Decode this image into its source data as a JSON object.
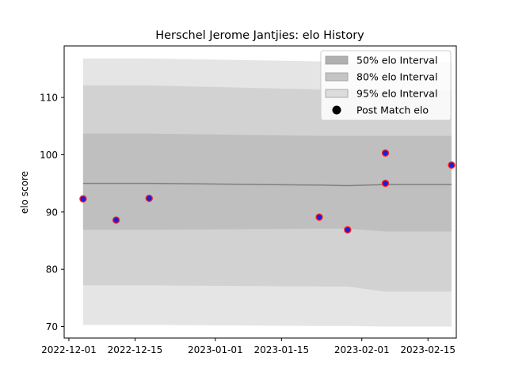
{
  "chart_data": {
    "type": "line",
    "title": "Herschel Jerome Jantjies: elo History",
    "xlabel": "",
    "ylabel": "elo score",
    "xlim": [
      "2022-11-30",
      "2023-02-21"
    ],
    "ylim": [
      68,
      119
    ],
    "x_ticks": [
      "2022-12-01",
      "2022-12-15",
      "2023-01-01",
      "2023-01-15",
      "2023-02-01",
      "2023-02-15"
    ],
    "y_ticks": [
      70,
      80,
      90,
      100,
      110
    ],
    "grid": false,
    "legend_placement": "top-right",
    "band_x": [
      "2022-12-04",
      "2022-12-11",
      "2022-12-18",
      "2023-01-23",
      "2023-01-29",
      "2023-02-06",
      "2023-02-20"
    ],
    "mean_elo": [
      95.0,
      95.0,
      95.0,
      94.7,
      94.6,
      94.8,
      94.8
    ],
    "bands": [
      {
        "name": "95% elo Interval",
        "color": "#e5e5e5",
        "upper": [
          116.8,
          116.8,
          116.8,
          116.3,
          116.2,
          116.2,
          116.2
        ],
        "lower": [
          70.3,
          70.3,
          70.3,
          70.1,
          70.1,
          70.0,
          70.0
        ]
      },
      {
        "name": "80% elo Interval",
        "color": "#d2d2d2",
        "upper": [
          112.1,
          112.1,
          112.1,
          111.4,
          111.3,
          111.3,
          111.3
        ],
        "lower": [
          77.2,
          77.2,
          77.2,
          77.0,
          77.0,
          76.1,
          76.1
        ]
      },
      {
        "name": "50% elo Interval",
        "color": "#bfbfbf",
        "upper": [
          103.7,
          103.7,
          103.7,
          103.3,
          103.3,
          103.3,
          103.3
        ],
        "lower": [
          86.9,
          86.9,
          86.9,
          87.1,
          87.1,
          86.6,
          86.6
        ]
      }
    ],
    "post_match": {
      "name": "Post Match elo",
      "x": [
        "2022-12-04",
        "2022-12-11",
        "2022-12-18",
        "2023-01-23",
        "2023-01-29",
        "2023-02-06",
        "2023-02-06",
        "2023-02-20"
      ],
      "y": [
        92.3,
        88.6,
        92.4,
        89.1,
        86.9,
        100.3,
        95.0,
        98.2
      ],
      "fill": "#1f1fd0",
      "edge": "#ff2020"
    },
    "legend": [
      {
        "label": "50% elo Interval",
        "swatch": "#b0b0b0",
        "kind": "patch"
      },
      {
        "label": "80% elo Interval",
        "swatch": "#c4c4c4",
        "kind": "patch"
      },
      {
        "label": "95% elo Interval",
        "swatch": "#dcdcdc",
        "kind": "patch"
      },
      {
        "label": "Post Match elo",
        "swatch": "#000000",
        "kind": "marker"
      }
    ]
  }
}
